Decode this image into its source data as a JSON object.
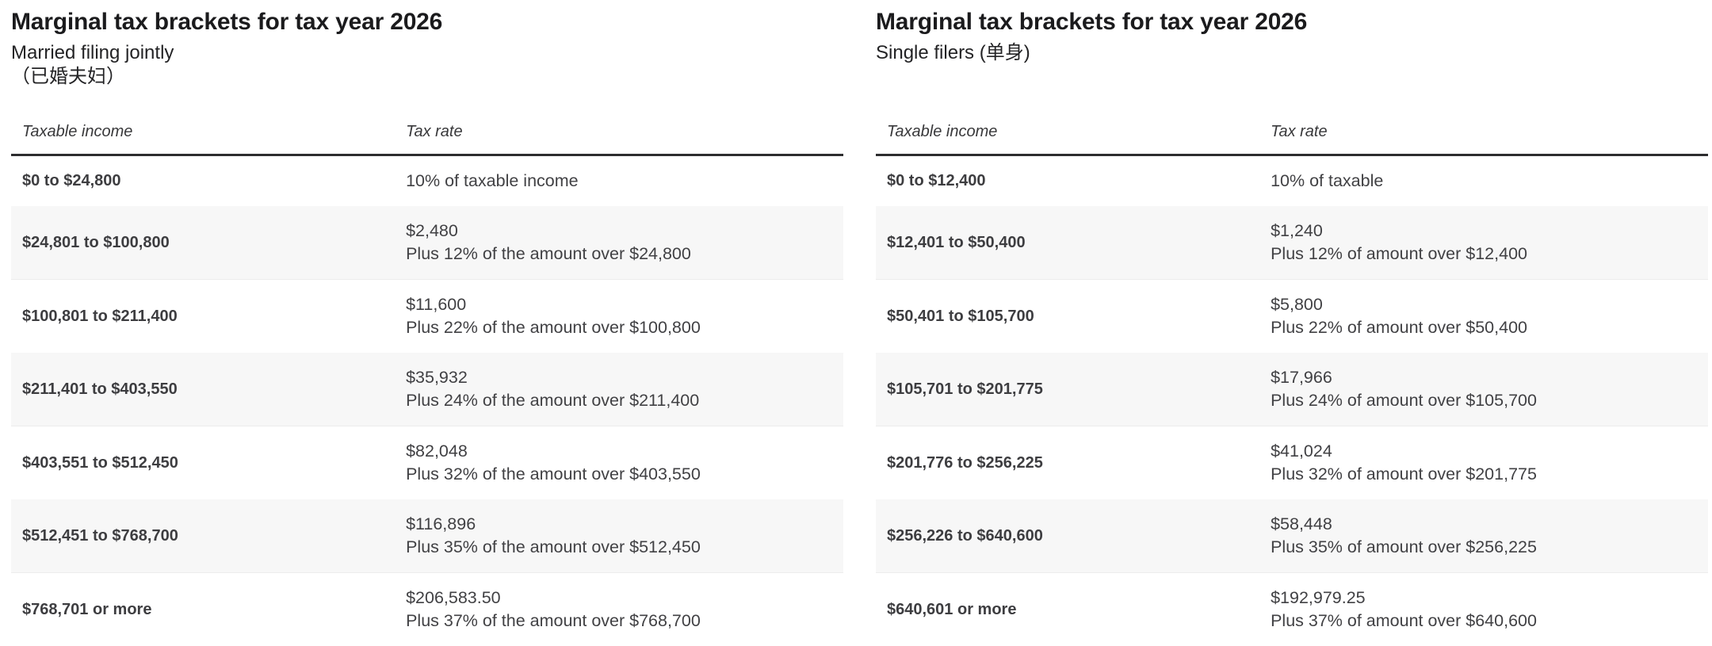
{
  "colors": {
    "page_background": "#ffffff",
    "title_text": "#1b1b1d",
    "body_text": "#3e3e40",
    "header_rule": "#2d2d2f",
    "row_shade": "#f7f7f7"
  },
  "tables": [
    {
      "title": "Marginal tax brackets for tax year 2026",
      "subtitle_lines": [
        "Married filing jointly",
        "（已婚夫妇）"
      ],
      "columns": [
        "Taxable income",
        "Tax rate"
      ],
      "rows": [
        {
          "income": "$0 to $24,800",
          "rate_lines": [
            "10% of taxable income"
          ]
        },
        {
          "income": "$24,801 to $100,800",
          "rate_lines": [
            "$2,480",
            "Plus 12% of the amount over $24,800"
          ]
        },
        {
          "income": "$100,801 to $211,400",
          "rate_lines": [
            "$11,600",
            "Plus 22% of the amount over $100,800"
          ]
        },
        {
          "income": "$211,401 to $403,550",
          "rate_lines": [
            "$35,932",
            "Plus 24% of the amount over $211,400"
          ]
        },
        {
          "income": "$403,551 to $512,450",
          "rate_lines": [
            "$82,048",
            "Plus 32% of the amount over $403,550"
          ]
        },
        {
          "income": "$512,451 to $768,700",
          "rate_lines": [
            "$116,896",
            "Plus 35% of the amount over $512,450"
          ]
        },
        {
          "income": "$768,701 or more",
          "rate_lines": [
            "$206,583.50",
            "Plus 37% of the amount over $768,700"
          ]
        }
      ]
    },
    {
      "title": "Marginal tax brackets for tax year 2026",
      "subtitle_lines": [
        "Single filers (单身)"
      ],
      "columns": [
        "Taxable income",
        "Tax rate"
      ],
      "rows": [
        {
          "income": "$0 to $12,400",
          "rate_lines": [
            "10% of taxable"
          ]
        },
        {
          "income": "$12,401 to $50,400",
          "rate_lines": [
            "$1,240",
            "Plus 12% of amount over $12,400"
          ]
        },
        {
          "income": "$50,401 to $105,700",
          "rate_lines": [
            "$5,800",
            "Plus 22% of amount over $50,400"
          ]
        },
        {
          "income": "$105,701 to $201,775",
          "rate_lines": [
            "$17,966",
            "Plus 24% of amount over $105,700"
          ]
        },
        {
          "income": "$201,776 to $256,225",
          "rate_lines": [
            "$41,024",
            "Plus 32% of amount over $201,775"
          ]
        },
        {
          "income": "$256,226 to $640,600",
          "rate_lines": [
            "$58,448",
            "Plus 35% of amount over $256,225"
          ]
        },
        {
          "income": "$640,601 or more",
          "rate_lines": [
            "$192,979.25",
            "Plus 37% of amount over $640,600"
          ]
        }
      ]
    }
  ]
}
